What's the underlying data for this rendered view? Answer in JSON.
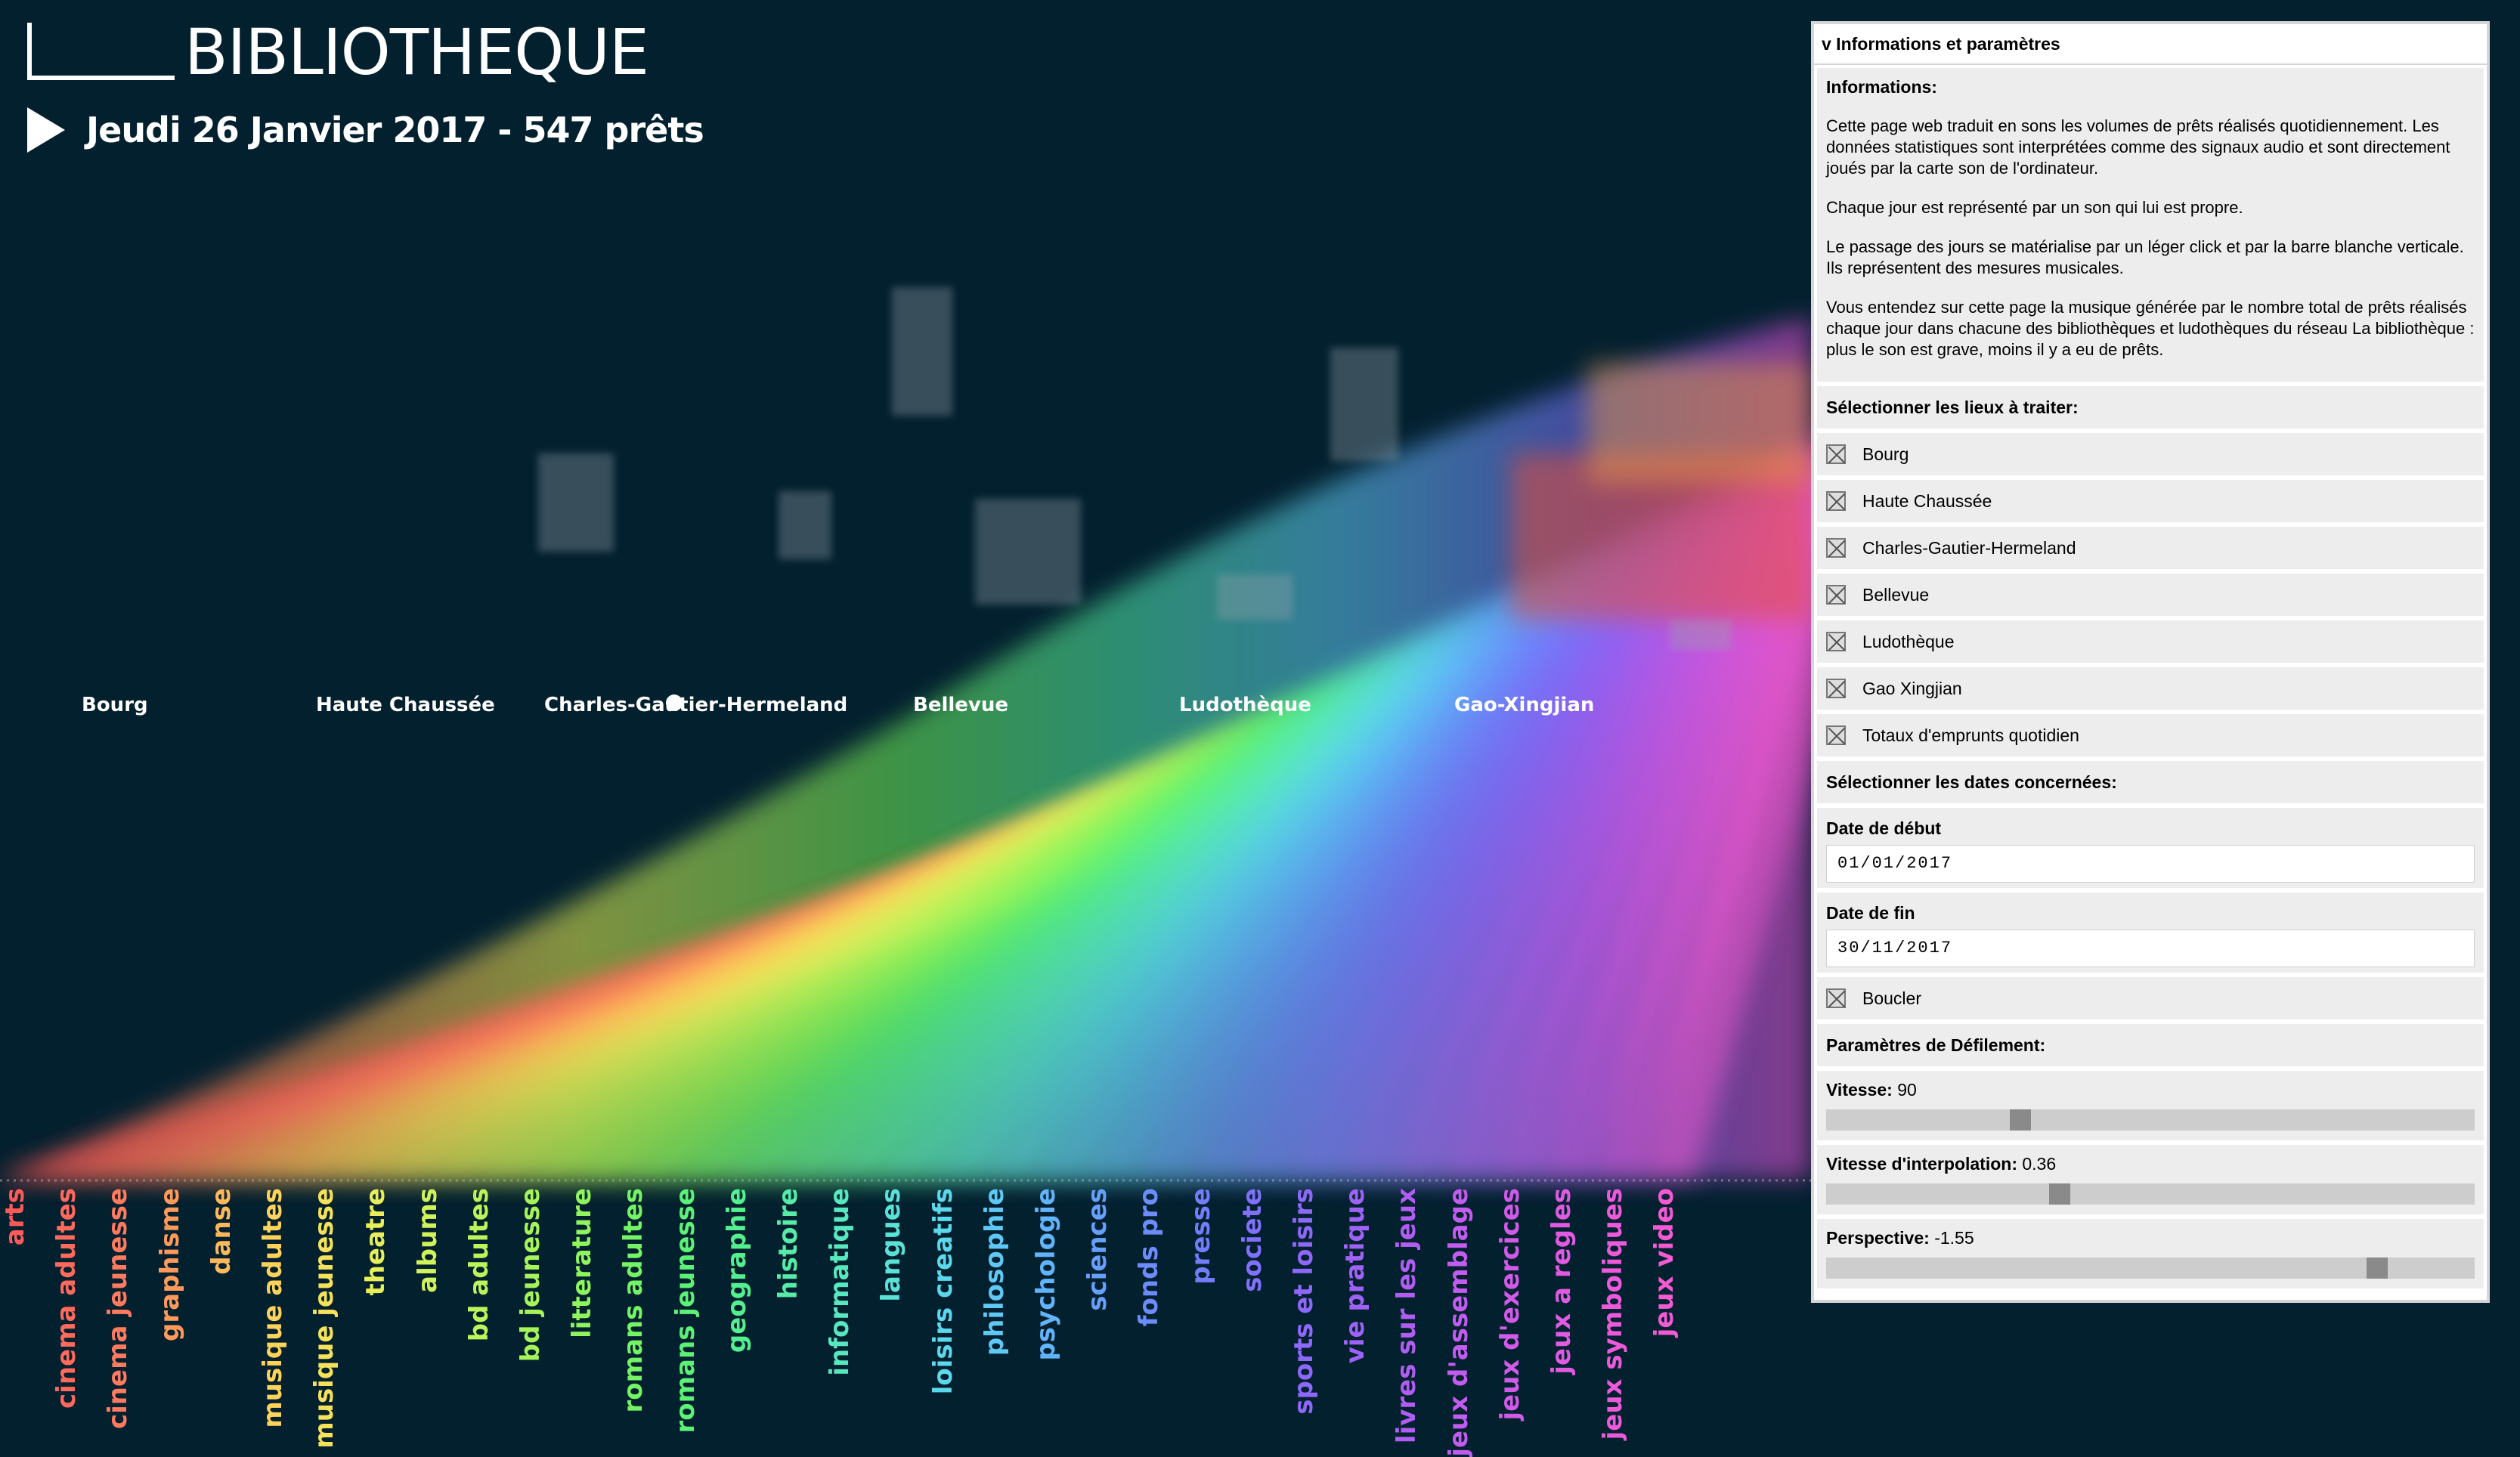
{
  "app": {
    "title": "BIBLIOTHEQUE",
    "date_line": "Jeudi 26 Janvier 2017 - 547 prêts"
  },
  "places": [
    "Bourg",
    "Haute Chaussée",
    "Charles-Gautier-Hermeland",
    "Bellevue",
    "Ludothèque",
    "Gao-Xingjian"
  ],
  "categories": [
    {
      "label": "arts",
      "color": "#ff5a5a"
    },
    {
      "label": "cinema adultes",
      "color": "#ff6a5c"
    },
    {
      "label": "cinema jeunesse",
      "color": "#ff7a5e"
    },
    {
      "label": "graphisme",
      "color": "#ff9a5a"
    },
    {
      "label": "danse",
      "color": "#ffb95a"
    },
    {
      "label": "musique adultes",
      "color": "#ffd35a"
    },
    {
      "label": "musique jeunesse",
      "color": "#f5e25a"
    },
    {
      "label": "theatre",
      "color": "#e8ee5a"
    },
    {
      "label": "albums",
      "color": "#d2f25a"
    },
    {
      "label": "bd adultes",
      "color": "#bdf45a"
    },
    {
      "label": "bd jeunesse",
      "color": "#a5f55a"
    },
    {
      "label": "litterature",
      "color": "#8ef55c"
    },
    {
      "label": "romans adultes",
      "color": "#74f464"
    },
    {
      "label": "romans jeunesse",
      "color": "#5cf276"
    },
    {
      "label": "geographie",
      "color": "#54ef8e"
    },
    {
      "label": "histoire",
      "color": "#56eca8"
    },
    {
      "label": "informatique",
      "color": "#58e8c0"
    },
    {
      "label": "langues",
      "color": "#5ae2d6"
    },
    {
      "label": "loisirs creatifs",
      "color": "#5cd8ec"
    },
    {
      "label": "philosophie",
      "color": "#5ec8f6"
    },
    {
      "label": "psychologie",
      "color": "#62b4fa"
    },
    {
      "label": "sciences",
      "color": "#66a0fc"
    },
    {
      "label": "fonds pro",
      "color": "#6c8cfc"
    },
    {
      "label": "presse",
      "color": "#747cfc"
    },
    {
      "label": "societe",
      "color": "#8070fc"
    },
    {
      "label": "sports et loisirs",
      "color": "#8e68fa"
    },
    {
      "label": "vie pratique",
      "color": "#9e62f6"
    },
    {
      "label": "livres sur les jeux",
      "color": "#b05ef2"
    },
    {
      "label": "jeux d'assemblage",
      "color": "#c25cee"
    },
    {
      "label": "jeux d'exercices",
      "color": "#d25ae8"
    },
    {
      "label": "jeux a regles",
      "color": "#e05ae2"
    },
    {
      "label": "jeux symboliques",
      "color": "#ec5ada"
    },
    {
      "label": "jeux video",
      "color": "#f45ad2"
    }
  ],
  "panel": {
    "header": "v Informations et paramètres",
    "info_title": "Informations:",
    "info_p1": "Cette page web traduit en sons les volumes de prêts réalisés quotidiennement. Les données statistiques sont interprétées comme des signaux audio et sont directement joués par la carte son de l'ordinateur.",
    "info_p2": "Chaque jour est représenté par un son qui lui est propre.",
    "info_p3": "Le passage des jours se matérialise par un léger click et par la barre blanche verticale. Ils représentent des mesures musicales.",
    "info_p4": "Vous entendez sur cette page la musique générée par le nombre total de prêts réalisés chaque jour dans chacune des bibliothèques et ludothèques du réseau La bibliothèque : plus le son est grave, moins il y a eu de prêts.",
    "places_title": "Sélectionner les lieux à traiter:",
    "place_options": [
      "Bourg",
      "Haute Chaussée",
      "Charles-Gautier-Hermeland",
      "Bellevue",
      "Ludothèque",
      "Gao Xingjian",
      "Totaux d'emprunts quotidien"
    ],
    "dates_title": "Sélectionner les dates concernées:",
    "start_label": "Date de début",
    "start_value": "01/01/2017",
    "end_label": "Date de fin",
    "end_value": "30/11/2017",
    "loop_label": "Boucler",
    "scroll_title": "Paramètres de Défilement:",
    "speed_label": "Vitesse:",
    "speed_value": "90",
    "speed_fraction": 0.3,
    "interp_label": "Vitesse d'interpolation:",
    "interp_value": "0.36",
    "interp_fraction": 0.36,
    "persp_label": "Perspective:",
    "persp_value": "-1.55",
    "persp_fraction": 0.85
  }
}
